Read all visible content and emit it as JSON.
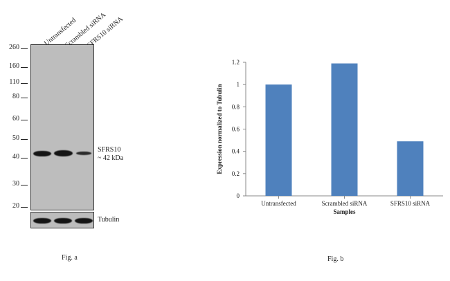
{
  "fig_a": {
    "lanes": [
      "Untransfected",
      "Scrambled siRNA",
      "SFRS10 siRNA"
    ],
    "mw_markers": [
      "260",
      "160",
      "110",
      "80",
      "60",
      "50",
      "40",
      "30",
      "20"
    ],
    "target_label": "SFRS10",
    "target_size": "~ 42 kDa",
    "loading_control_label": "Tubulin",
    "caption": "Fig. a"
  },
  "fig_b": {
    "caption": "Fig. b"
  },
  "chart_data": {
    "type": "bar",
    "categories": [
      "Untransfected",
      "Scrambled siRNA",
      "SFRS10 siRNA"
    ],
    "values": [
      1.0,
      1.19,
      0.49
    ],
    "xlabel": "Samples",
    "ylabel": "Expression  normalized to Tubulin",
    "ylim": [
      0,
      1.2
    ],
    "yticks": [
      "0",
      "0.2",
      "0.4",
      "0.6",
      "0.8",
      "1",
      "1.2"
    ],
    "bar_color": "#4f81bd",
    "grid": false
  }
}
